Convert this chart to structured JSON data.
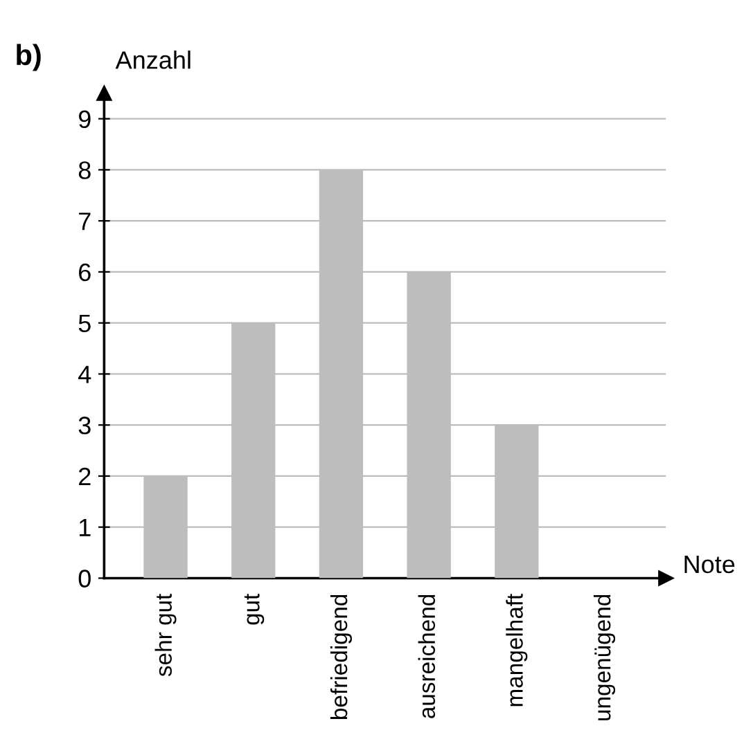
{
  "chart_data": {
    "type": "bar",
    "categories": [
      "sehr gut",
      "gut",
      "befriedigend",
      "ausreichend",
      "mangelhaft",
      "ungenügend"
    ],
    "values": [
      2,
      5,
      8,
      6,
      3,
      0
    ],
    "color": "#bdbdbd",
    "xlabel": "Note",
    "ylabel": "Anzahl",
    "ylim": [
      0,
      9.5
    ],
    "yticks": [
      0,
      1,
      2,
      3,
      4,
      5,
      6,
      7,
      8,
      9
    ],
    "grid": "y",
    "annotations": [
      "b)"
    ]
  }
}
